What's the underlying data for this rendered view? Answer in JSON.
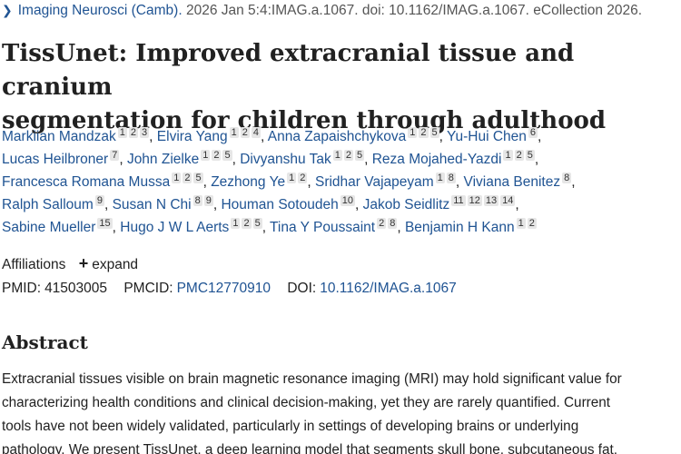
{
  "citation": {
    "journal": "Imaging Neurosci (Camb).",
    "details": "2026 Jan 5:4:IMAG.a.1067. doi: 10.1162/IMAG.a.1067. eCollection 2026."
  },
  "title_lines": [
    "TissUnet: Improved extracranial tissue and cranium",
    "segmentation for children through adulthood"
  ],
  "author_lines": [
    [
      {
        "name": "Markiian Mandzak",
        "affils": [
          "1",
          "2",
          "3"
        ]
      },
      {
        "name": "Elvira Yang",
        "affils": [
          "1",
          "2",
          "4"
        ]
      },
      {
        "name": "Anna Zapaishchykova",
        "affils": [
          "1",
          "2",
          "5"
        ]
      },
      {
        "name": "Yu-Hui Chen",
        "affils": [
          "6"
        ]
      }
    ],
    [
      {
        "name": "Lucas Heilbroner",
        "affils": [
          "7"
        ]
      },
      {
        "name": "John Zielke",
        "affils": [
          "1",
          "2",
          "5"
        ]
      },
      {
        "name": "Divyanshu Tak",
        "affils": [
          "1",
          "2",
          "5"
        ]
      },
      {
        "name": "Reza Mojahed-Yazdi",
        "affils": [
          "1",
          "2",
          "5"
        ]
      }
    ],
    [
      {
        "name": "Francesca Romana Mussa",
        "affils": [
          "1",
          "2",
          "5"
        ]
      },
      {
        "name": "Zezhong Ye",
        "affils": [
          "1",
          "2"
        ]
      },
      {
        "name": "Sridhar Vajapeyam",
        "affils": [
          "1",
          "8"
        ]
      },
      {
        "name": "Viviana Benitez",
        "affils": [
          "8"
        ]
      }
    ],
    [
      {
        "name": "Ralph Salloum",
        "affils": [
          "9"
        ]
      },
      {
        "name": "Susan N Chi",
        "affils": [
          "8",
          "9"
        ]
      },
      {
        "name": "Houman Sotoudeh",
        "affils": [
          "10"
        ]
      },
      {
        "name": "Jakob Seidlitz",
        "affils": [
          "11",
          "12",
          "13",
          "14"
        ]
      }
    ],
    [
      {
        "name": "Sabine Mueller",
        "affils": [
          "15"
        ]
      },
      {
        "name": "Hugo J W L Aerts",
        "affils": [
          "1",
          "2",
          "5"
        ]
      },
      {
        "name": "Tina Y Poussaint",
        "affils": [
          "2",
          "8"
        ]
      },
      {
        "name": "Benjamin H Kann",
        "affils": [
          "1",
          "2"
        ]
      }
    ]
  ],
  "affiliations": {
    "label": "Affiliations",
    "expand": "expand"
  },
  "ids": {
    "pmid_label": "PMID:",
    "pmid": "41503005",
    "pmcid_label": "PMCID:",
    "pmcid": "PMC12770910",
    "doi_label": "DOI:",
    "doi": "10.1162/IMAG.a.1067"
  },
  "abstract": {
    "heading": "Abstract",
    "lines": [
      "Extracranial tissues visible on brain magnetic resonance imaging (MRI) may hold significant value for",
      "characterizing health conditions and clinical decision-making, yet they are rarely quantified. Current",
      "tools have not been widely validated, particularly in settings of developing brains or underlying",
      "pathology. We present TissUnet, a deep learning model that segments skull bone, subcutaneous fat,"
    ]
  },
  "colors": {
    "link": "#205493",
    "text": "#212121",
    "sup_bg": "#e6e6e6"
  }
}
